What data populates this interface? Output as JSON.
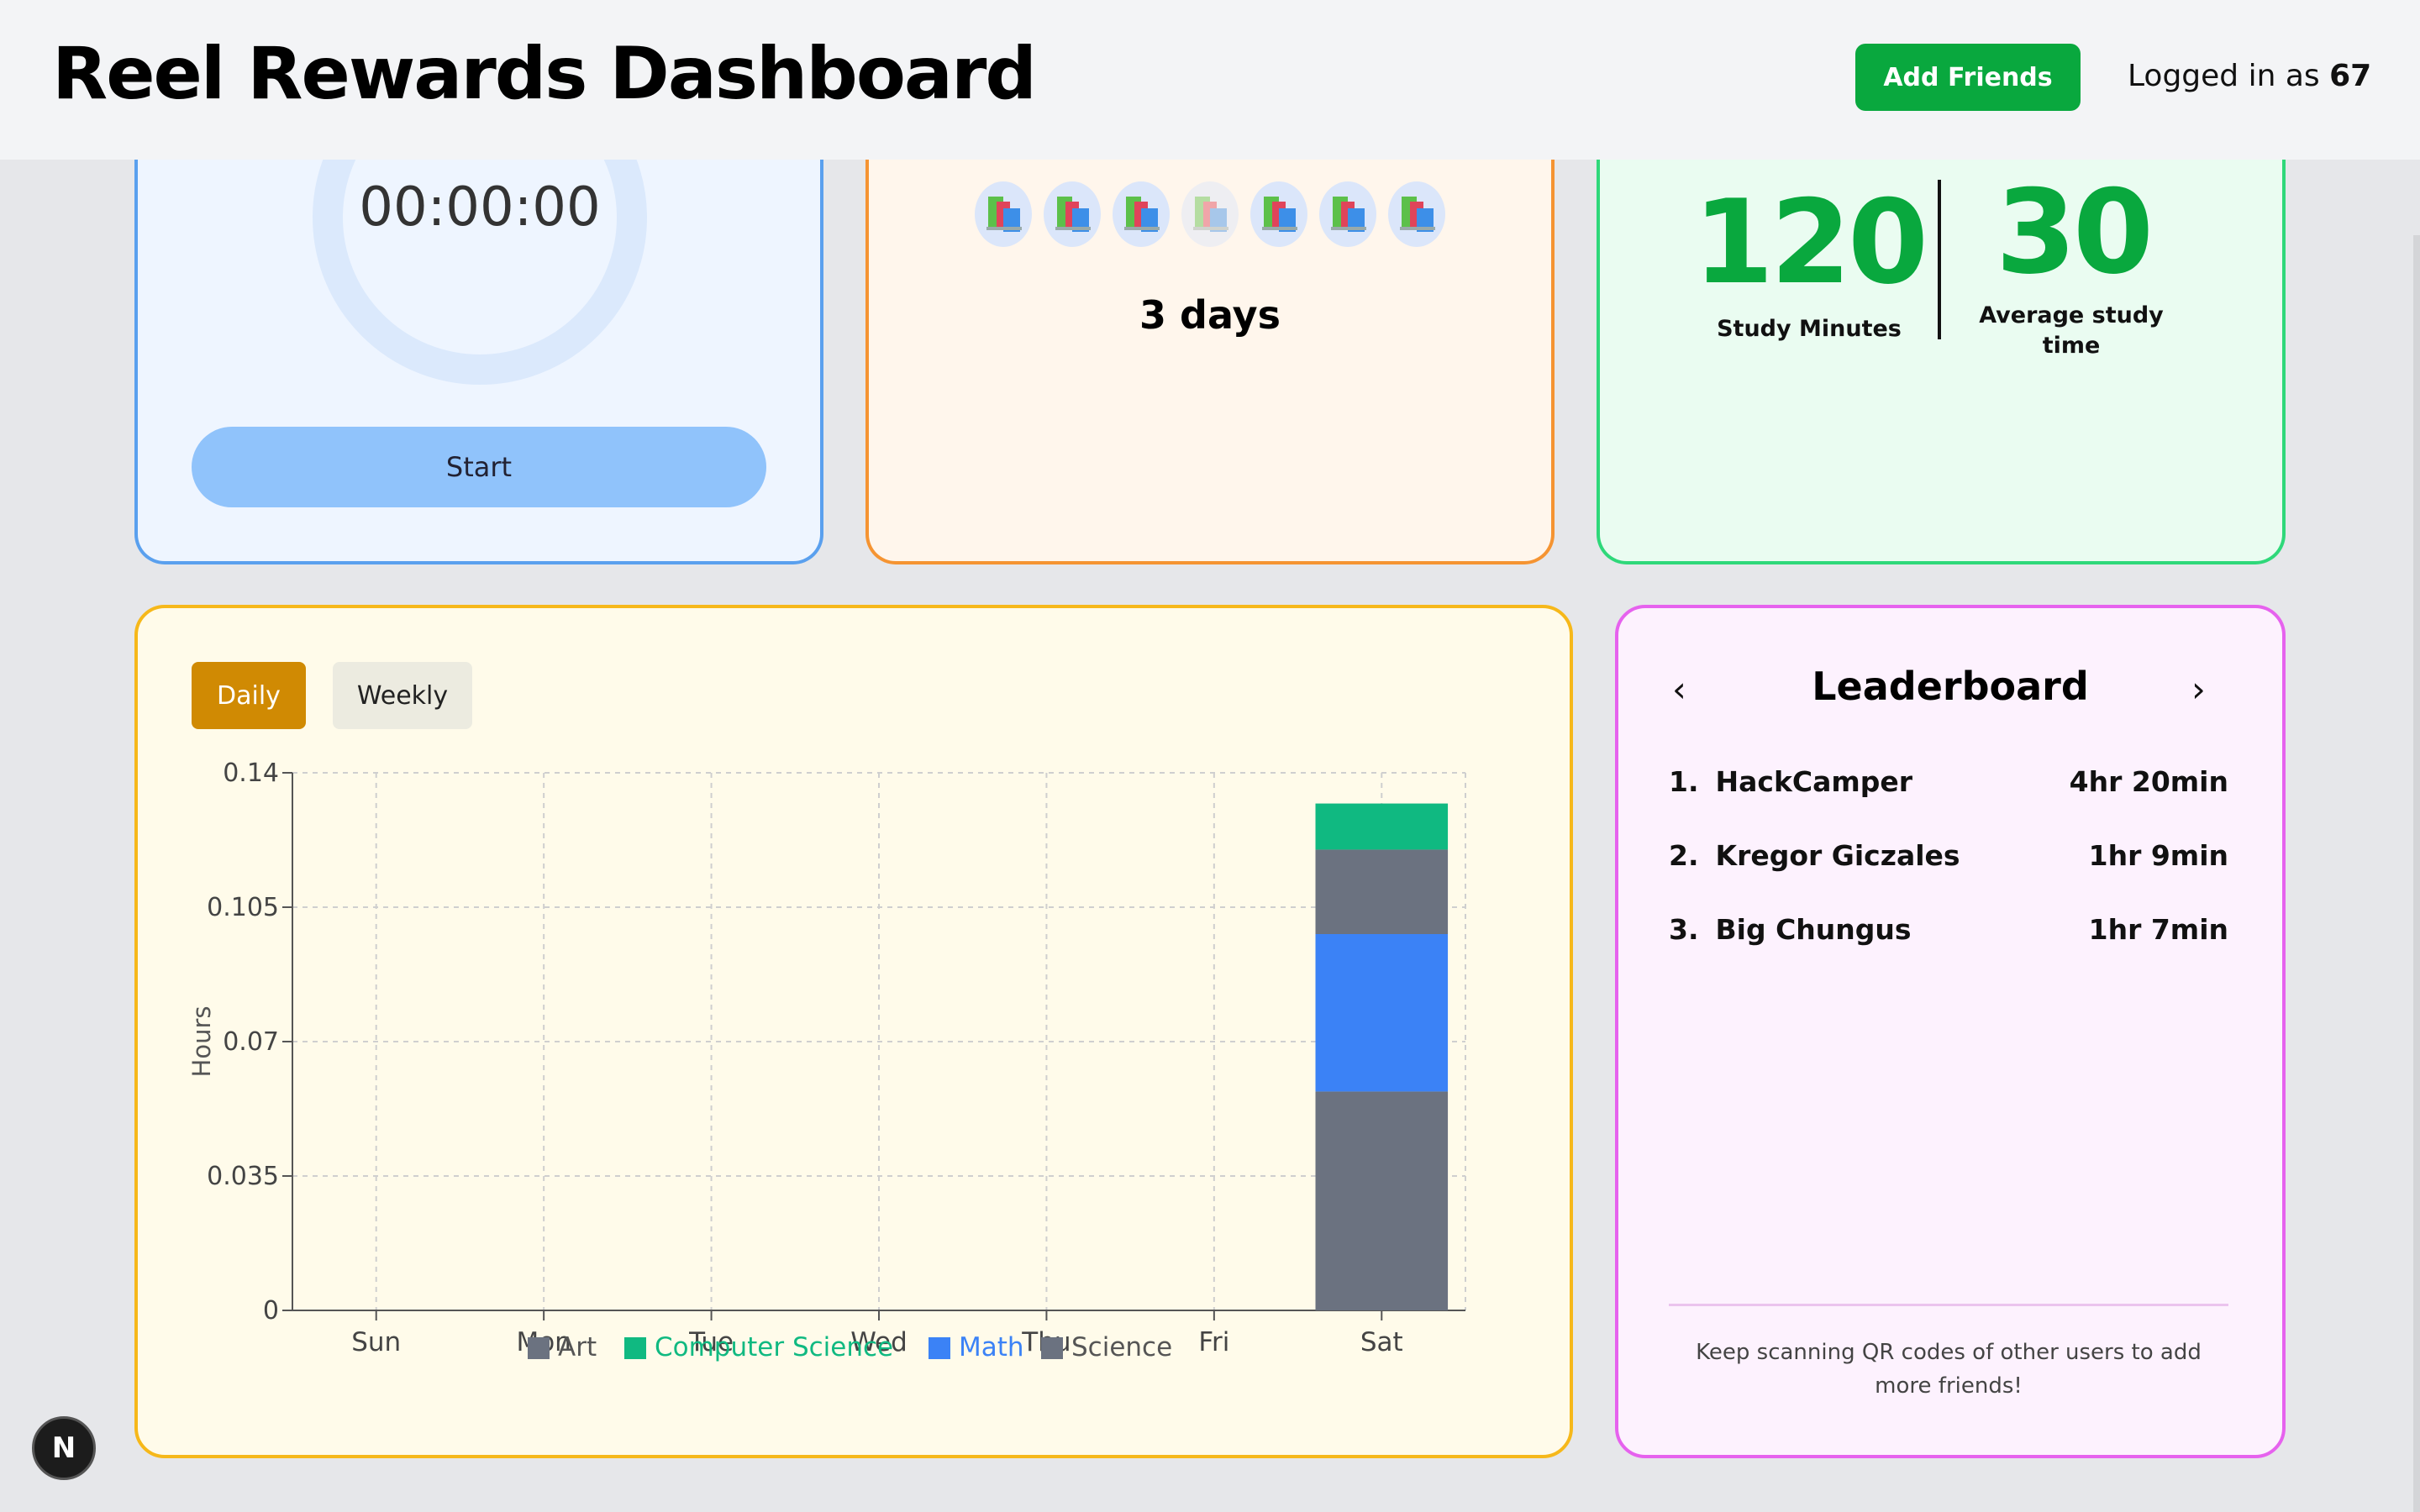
{
  "header": {
    "title": "Reel Rewards Dashboard",
    "add_friends_label": "Add Friends",
    "logged_in_prefix": "Logged in as ",
    "username": "67"
  },
  "timer": {
    "display": "00:00:00",
    "start_label": "Start"
  },
  "streak": {
    "icon": "books-icon",
    "days_active": [
      true,
      true,
      true,
      false,
      true,
      true,
      true
    ],
    "label": "3 days"
  },
  "stats": {
    "study_minutes": "120",
    "study_minutes_label": "Study Minutes",
    "average_time": "30",
    "average_time_label": "Average study time"
  },
  "chart_tabs": {
    "daily": "Daily",
    "weekly": "Weekly",
    "active": "daily"
  },
  "chart_data": {
    "type": "bar",
    "stacked": true,
    "categories": [
      "Sun",
      "Mon",
      "Tue",
      "Wed",
      "Thu",
      "Fri",
      "Sat"
    ],
    "ylabel": "Hours",
    "ylim": [
      0,
      0.14
    ],
    "yticks": [
      "0",
      "0.035",
      "0.07",
      "0.105",
      "0.14"
    ],
    "grid": true,
    "legend_position": "bottom",
    "series": [
      {
        "name": "Art",
        "color": "#6b7280",
        "values": [
          0,
          0,
          0,
          0,
          0,
          0,
          0.057
        ]
      },
      {
        "name": "Math",
        "color": "#3b82f6",
        "values": [
          0,
          0,
          0,
          0,
          0,
          0,
          0.041
        ]
      },
      {
        "name": "Science",
        "color": "#6b7280",
        "values": [
          0,
          0,
          0,
          0,
          0,
          0,
          0.022
        ]
      },
      {
        "name": "Computer Science",
        "color": "#10b981",
        "values": [
          0,
          0,
          0,
          0,
          0,
          0,
          0.012
        ]
      }
    ],
    "legend_order": [
      "Art",
      "Computer Science",
      "Math",
      "Science"
    ]
  },
  "leaderboard": {
    "title": "Leaderboard",
    "entries": [
      {
        "rank": "1.",
        "name": "HackCamper",
        "time": "4hr 20min"
      },
      {
        "rank": "2.",
        "name": "Kregor Giczales",
        "time": "1hr 9min"
      },
      {
        "rank": "3.",
        "name": "Big Chungus",
        "time": "1hr 7min"
      }
    ],
    "footer": "Keep scanning QR codes of other users to add more friends!"
  },
  "dev_badge": "N"
}
